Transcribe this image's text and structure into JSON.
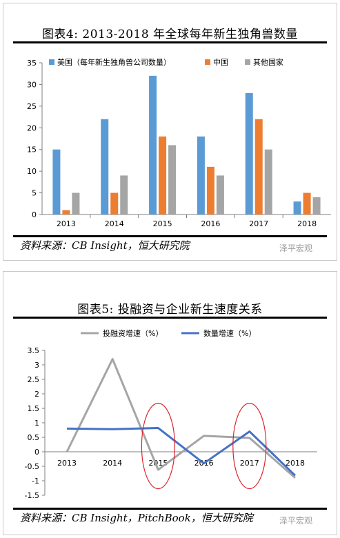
{
  "figure4": {
    "title": "图表4:  2013-2018 年全球每年新生独角兽数量",
    "source": "资料来源：CB Insight，恒大研究院",
    "watermark": "泽平宏观"
  },
  "figure5": {
    "title": "图表5:  投融资与企业新生速度关系",
    "source": "资料来源：CB Insight，PitchBook，恒大研究院",
    "watermark": "泽平宏观"
  },
  "colors": {
    "us": "#5b9bd5",
    "china": "#ed7d31",
    "other": "#a5a5a5",
    "investment_line": "#a5a5a5",
    "count_line": "#4472c4",
    "highlight_circle": "#d9262b"
  },
  "chart_data": [
    {
      "type": "bar",
      "categories": [
        "2013",
        "2014",
        "2015",
        "2016",
        "2017",
        "2018"
      ],
      "series": [
        {
          "name": "美国（每年新生独角兽公司数量）",
          "values": [
            15,
            22,
            32,
            18,
            28,
            3
          ]
        },
        {
          "name": "中国",
          "values": [
            1,
            5,
            18,
            11,
            22,
            5
          ]
        },
        {
          "name": "其他国家",
          "values": [
            5,
            9,
            16,
            9,
            15,
            4
          ]
        }
      ],
      "yticks": [
        "0",
        "5",
        "10",
        "15",
        "20",
        "25",
        "30",
        "35"
      ],
      "ylim": [
        0,
        35
      ],
      "grid": false,
      "legend_position": "top"
    },
    {
      "type": "line",
      "categories": [
        "2013",
        "2014",
        "2015",
        "2016",
        "2017",
        "2018"
      ],
      "series": [
        {
          "name": "投融资增速（%）",
          "values": [
            0,
            3.2,
            -0.62,
            0.55,
            0.48,
            -0.9
          ]
        },
        {
          "name": "数量增速（%）",
          "values": [
            0.8,
            0.78,
            0.82,
            -0.4,
            0.7,
            -0.82
          ]
        }
      ],
      "yticks": [
        "3.5",
        "3",
        "2.5",
        "2",
        "1.5",
        "1",
        "0.5",
        "0",
        "-0.5",
        "-1",
        "-1.5"
      ],
      "ylim": [
        -1.5,
        3.5
      ],
      "grid": false,
      "legend_position": "top",
      "highlighted_categories": [
        "2015",
        "2017"
      ]
    }
  ]
}
